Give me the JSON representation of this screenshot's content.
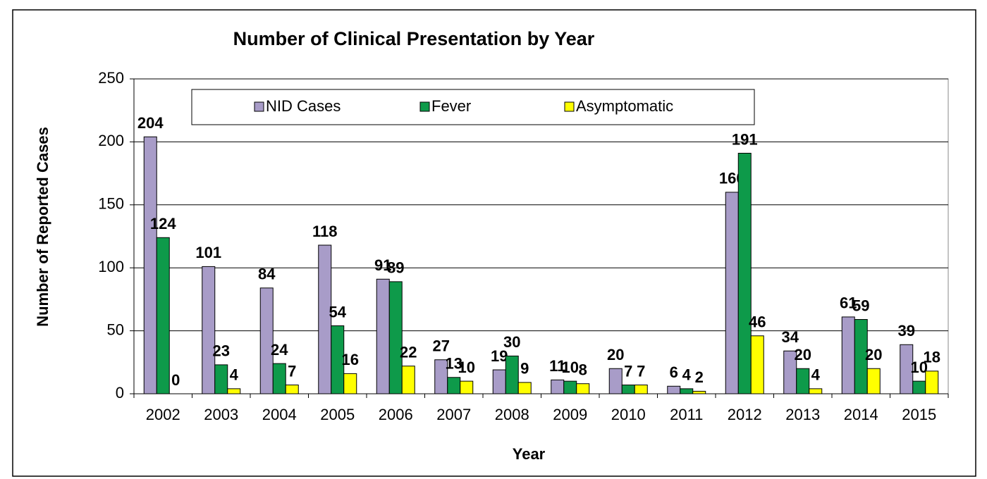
{
  "chart_data": {
    "type": "bar",
    "title": "Number of Clinical Presentation by Year",
    "x_label": "Year",
    "y_label": "Number of Reported Cases",
    "categories": [
      "2002",
      "2003",
      "2004",
      "2005",
      "2006",
      "2007",
      "2008",
      "2009",
      "2010",
      "2011",
      "2012",
      "2013",
      "2014",
      "2015"
    ],
    "series": [
      {
        "name": "NID Cases",
        "color": "#a89cc8",
        "values": [
          204,
          101,
          84,
          118,
          91,
          27,
          19,
          11,
          20,
          6,
          160,
          34,
          61,
          39
        ]
      },
      {
        "name": "Fever",
        "color": "#0e9a4a",
        "values": [
          124,
          23,
          24,
          54,
          89,
          13,
          30,
          10,
          7,
          4,
          191,
          20,
          59,
          10
        ]
      },
      {
        "name": "Asymptomatic",
        "color": "#ffff00",
        "values": [
          0,
          4,
          7,
          16,
          22,
          10,
          9,
          8,
          7,
          2,
          46,
          4,
          20,
          18
        ]
      }
    ],
    "ylim": [
      0,
      250
    ],
    "yticks": [
      0,
      50,
      100,
      150,
      200,
      250
    ],
    "grid": true,
    "legend": "top"
  }
}
